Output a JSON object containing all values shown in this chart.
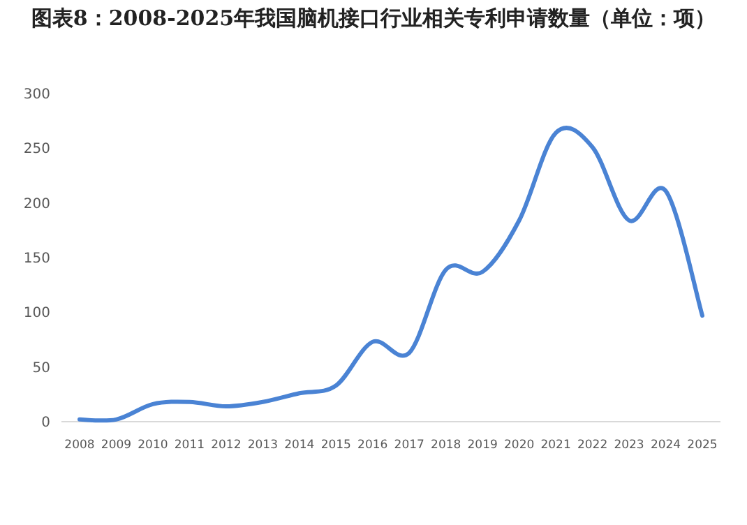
{
  "chart_data": {
    "type": "line",
    "title": "图表8：2008-2025年我国脑机接口行业相关专利申请数量（单位：项）",
    "categories": [
      "2008",
      "2009",
      "2010",
      "2011",
      "2012",
      "2013",
      "2014",
      "2015",
      "2016",
      "2017",
      "2018",
      "2019",
      "2020",
      "2021",
      "2022",
      "2023",
      "2024",
      "2025"
    ],
    "values": [
      2,
      2,
      16,
      18,
      14,
      18,
      26,
      33,
      73,
      63,
      139,
      137,
      184,
      264,
      251,
      184,
      211,
      97
    ],
    "color": "#4a83d4",
    "ylim": [
      0,
      300
    ],
    "yticks": [
      0,
      50,
      100,
      150,
      200,
      250,
      300
    ]
  }
}
